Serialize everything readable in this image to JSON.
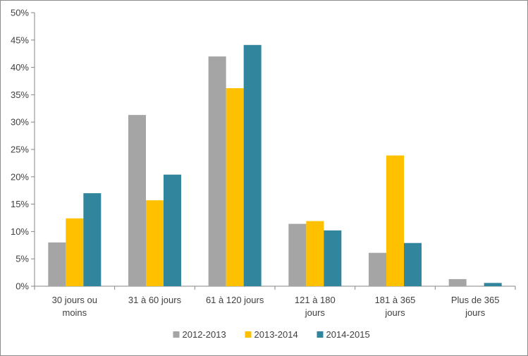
{
  "chart_data": {
    "type": "bar",
    "categories": [
      "30 jours ou moins",
      "31 à 60 jours",
      "61 à 120 jours",
      "121 à 180 jours",
      "181 à 365 jours",
      "Plus de 365 jours"
    ],
    "series": [
      {
        "name": "2012-2013",
        "color": "#a5a5a5",
        "values": [
          8.0,
          31.3,
          42.0,
          11.4,
          6.1,
          1.3
        ]
      },
      {
        "name": "2013-2014",
        "color": "#ffc000",
        "values": [
          12.4,
          15.7,
          36.2,
          11.9,
          23.9,
          0
        ]
      },
      {
        "name": "2014-2015",
        "color": "#31859c",
        "values": [
          17.0,
          20.4,
          44.1,
          10.2,
          7.9,
          0.6
        ]
      }
    ],
    "y_ticks": [
      "0%",
      "5%",
      "10%",
      "15%",
      "20%",
      "25%",
      "30%",
      "35%",
      "40%",
      "45%",
      "50%"
    ],
    "ylim": [
      0,
      50
    ],
    "y_unit": "%",
    "grid": false,
    "legend_position": "bottom"
  }
}
